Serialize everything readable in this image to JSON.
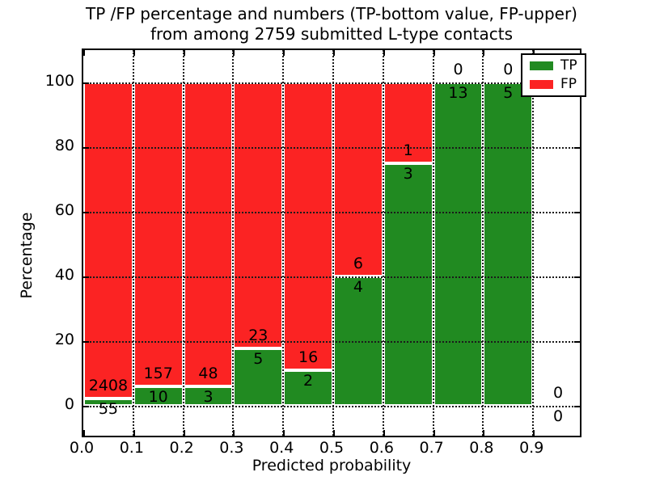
{
  "chart_data": {
    "type": "bar",
    "stacked": true,
    "title_line1": "TP /FP percentage and numbers (TP-bottom value, FP-upper)",
    "title_line2": "from among 2759 submitted L-type contacts",
    "total_submitted_contacts": 2759,
    "xlabel": "Predicted probability",
    "ylabel": "Percentage",
    "xlim": [
      0.0,
      1.0
    ],
    "ylim": [
      -10,
      110
    ],
    "grid": "dotted both axes",
    "x_tick_labels": [
      "0.0",
      "0.1",
      "0.2",
      "0.3",
      "0.4",
      "0.5",
      "0.6",
      "0.7",
      "0.8",
      "0.9"
    ],
    "y_tick_values": [
      0,
      20,
      40,
      60,
      80,
      100
    ],
    "legend": {
      "position": "upper right",
      "entries": [
        {
          "label": "TP",
          "color": "#218a21"
        },
        {
          "label": "FP",
          "color": "#fb2323"
        }
      ]
    },
    "colors": {
      "tp_green": "#218a21",
      "fp_red": "#fb2323",
      "bar_edge": "#ffffff"
    },
    "bins": [
      {
        "range": "0.0-0.1",
        "tp": 55,
        "fp": 2408,
        "tp_percent": 2.23
      },
      {
        "range": "0.1-0.2",
        "tp": 10,
        "fp": 157,
        "tp_percent": 5.99
      },
      {
        "range": "0.2-0.3",
        "tp": 3,
        "fp": 48,
        "tp_percent": 5.88
      },
      {
        "range": "0.3-0.4",
        "tp": 5,
        "fp": 23,
        "tp_percent": 17.86
      },
      {
        "range": "0.4-0.5",
        "tp": 2,
        "fp": 16,
        "tp_percent": 11.11
      },
      {
        "range": "0.5-0.6",
        "tp": 4,
        "fp": 6,
        "tp_percent": 40.0
      },
      {
        "range": "0.6-0.7",
        "tp": 3,
        "fp": 1,
        "tp_percent": 75.0
      },
      {
        "range": "0.7-0.8",
        "tp": 13,
        "fp": 0,
        "tp_percent": 100.0
      },
      {
        "range": "0.8-0.9",
        "tp": 5,
        "fp": 0,
        "tp_percent": 100.0
      },
      {
        "range": "0.9-1.0",
        "tp": 0,
        "fp": 0,
        "tp_percent": 0.0
      }
    ]
  }
}
